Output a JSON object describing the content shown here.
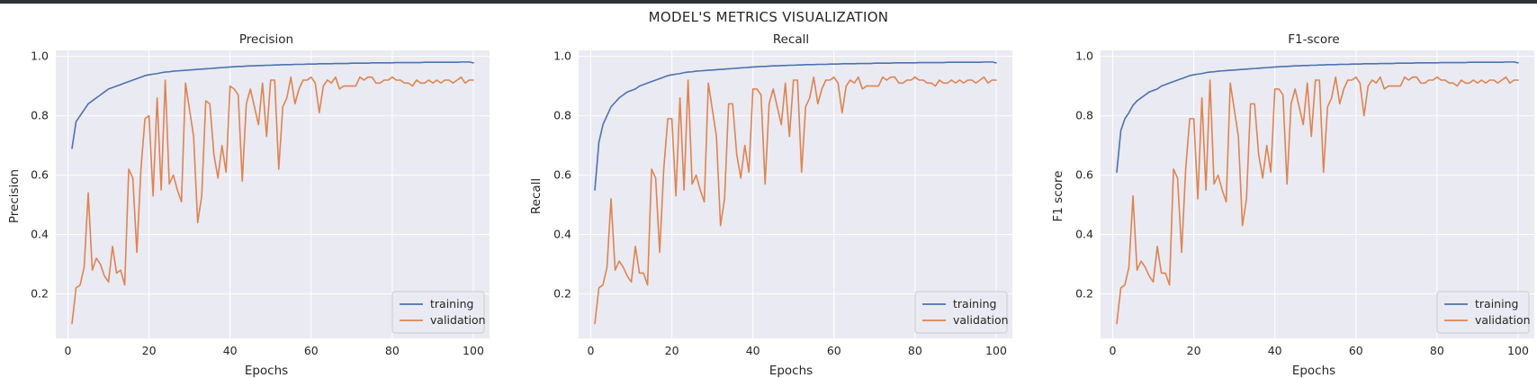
{
  "figure_title": "MODEL'S METRICS VISUALIZATION",
  "colors": {
    "background": "#eaeaf2",
    "grid": "#ffffff",
    "training": "#4c72b0",
    "validation": "#dd8452"
  },
  "chart_data": [
    {
      "type": "line",
      "title": "Precision",
      "xlabel": "Epochs",
      "ylabel": "Precision",
      "xlim": [
        -3,
        104
      ],
      "ylim": [
        0.05,
        1.02
      ],
      "xticks": [
        0,
        20,
        40,
        60,
        80,
        100
      ],
      "yticks": [
        0.2,
        0.4,
        0.6,
        0.8,
        1.0
      ],
      "grid": true,
      "legend_position": "lower-right",
      "x": [
        1,
        2,
        3,
        4,
        5,
        6,
        7,
        8,
        9,
        10,
        11,
        12,
        13,
        14,
        15,
        16,
        17,
        18,
        19,
        20,
        21,
        22,
        23,
        24,
        25,
        26,
        27,
        28,
        29,
        30,
        31,
        32,
        33,
        34,
        35,
        36,
        37,
        38,
        39,
        40,
        41,
        42,
        43,
        44,
        45,
        46,
        47,
        48,
        49,
        50,
        51,
        52,
        53,
        54,
        55,
        56,
        57,
        58,
        59,
        60,
        61,
        62,
        63,
        64,
        65,
        66,
        67,
        68,
        69,
        70,
        71,
        72,
        73,
        74,
        75,
        76,
        77,
        78,
        79,
        80,
        81,
        82,
        83,
        84,
        85,
        86,
        87,
        88,
        89,
        90,
        91,
        92,
        93,
        94,
        95,
        96,
        97,
        98,
        99,
        100
      ],
      "series": [
        {
          "name": "training",
          "values": [
            0.69,
            0.78,
            0.8,
            0.82,
            0.84,
            0.85,
            0.86,
            0.87,
            0.88,
            0.89,
            0.895,
            0.9,
            0.905,
            0.91,
            0.915,
            0.92,
            0.925,
            0.93,
            0.935,
            0.938,
            0.94,
            0.942,
            0.945,
            0.947,
            0.948,
            0.95,
            0.951,
            0.952,
            0.953,
            0.954,
            0.955,
            0.956,
            0.957,
            0.958,
            0.959,
            0.96,
            0.961,
            0.962,
            0.963,
            0.964,
            0.965,
            0.966,
            0.966,
            0.967,
            0.968,
            0.968,
            0.969,
            0.969,
            0.97,
            0.97,
            0.971,
            0.971,
            0.972,
            0.972,
            0.972,
            0.973,
            0.973,
            0.973,
            0.974,
            0.974,
            0.974,
            0.975,
            0.975,
            0.975,
            0.975,
            0.976,
            0.976,
            0.976,
            0.976,
            0.977,
            0.977,
            0.977,
            0.977,
            0.977,
            0.978,
            0.978,
            0.978,
            0.978,
            0.978,
            0.978,
            0.979,
            0.979,
            0.979,
            0.979,
            0.979,
            0.979,
            0.979,
            0.98,
            0.98,
            0.98,
            0.98,
            0.98,
            0.98,
            0.98,
            0.98,
            0.98,
            0.981,
            0.981,
            0.981,
            0.978
          ]
        },
        {
          "name": "validation",
          "values": [
            0.1,
            0.22,
            0.23,
            0.29,
            0.54,
            0.28,
            0.32,
            0.3,
            0.26,
            0.24,
            0.36,
            0.27,
            0.28,
            0.23,
            0.62,
            0.59,
            0.34,
            0.62,
            0.79,
            0.8,
            0.53,
            0.86,
            0.55,
            0.92,
            0.57,
            0.6,
            0.55,
            0.51,
            0.91,
            0.82,
            0.73,
            0.44,
            0.53,
            0.85,
            0.84,
            0.67,
            0.59,
            0.7,
            0.61,
            0.9,
            0.89,
            0.87,
            0.58,
            0.84,
            0.89,
            0.83,
            0.77,
            0.91,
            0.73,
            0.92,
            0.92,
            0.62,
            0.83,
            0.86,
            0.93,
            0.84,
            0.89,
            0.92,
            0.92,
            0.93,
            0.91,
            0.81,
            0.9,
            0.92,
            0.91,
            0.93,
            0.89,
            0.9,
            0.9,
            0.9,
            0.9,
            0.93,
            0.92,
            0.93,
            0.93,
            0.91,
            0.91,
            0.92,
            0.92,
            0.93,
            0.92,
            0.92,
            0.91,
            0.91,
            0.9,
            0.92,
            0.91,
            0.91,
            0.92,
            0.91,
            0.92,
            0.91,
            0.92,
            0.92,
            0.91,
            0.92,
            0.93,
            0.91,
            0.92,
            0.92
          ]
        }
      ]
    },
    {
      "type": "line",
      "title": "Recall",
      "xlabel": "Epochs",
      "ylabel": "Recall",
      "xlim": [
        -3,
        104
      ],
      "ylim": [
        0.05,
        1.02
      ],
      "xticks": [
        0,
        20,
        40,
        60,
        80,
        100
      ],
      "yticks": [
        0.2,
        0.4,
        0.6,
        0.8,
        1.0
      ],
      "grid": true,
      "legend_position": "lower-right",
      "x": [
        1,
        2,
        3,
        4,
        5,
        6,
        7,
        8,
        9,
        10,
        11,
        12,
        13,
        14,
        15,
        16,
        17,
        18,
        19,
        20,
        21,
        22,
        23,
        24,
        25,
        26,
        27,
        28,
        29,
        30,
        31,
        32,
        33,
        34,
        35,
        36,
        37,
        38,
        39,
        40,
        41,
        42,
        43,
        44,
        45,
        46,
        47,
        48,
        49,
        50,
        51,
        52,
        53,
        54,
        55,
        56,
        57,
        58,
        59,
        60,
        61,
        62,
        63,
        64,
        65,
        66,
        67,
        68,
        69,
        70,
        71,
        72,
        73,
        74,
        75,
        76,
        77,
        78,
        79,
        80,
        81,
        82,
        83,
        84,
        85,
        86,
        87,
        88,
        89,
        90,
        91,
        92,
        93,
        94,
        95,
        96,
        97,
        98,
        99,
        100
      ],
      "series": [
        {
          "name": "training",
          "values": [
            0.55,
            0.71,
            0.77,
            0.8,
            0.83,
            0.845,
            0.86,
            0.87,
            0.88,
            0.885,
            0.89,
            0.9,
            0.905,
            0.91,
            0.915,
            0.92,
            0.925,
            0.93,
            0.935,
            0.938,
            0.94,
            0.942,
            0.945,
            0.947,
            0.948,
            0.95,
            0.951,
            0.952,
            0.953,
            0.954,
            0.955,
            0.956,
            0.957,
            0.958,
            0.959,
            0.96,
            0.961,
            0.962,
            0.963,
            0.964,
            0.965,
            0.966,
            0.966,
            0.967,
            0.968,
            0.968,
            0.969,
            0.969,
            0.97,
            0.97,
            0.971,
            0.971,
            0.972,
            0.972,
            0.972,
            0.973,
            0.973,
            0.973,
            0.974,
            0.974,
            0.974,
            0.975,
            0.975,
            0.975,
            0.975,
            0.976,
            0.976,
            0.976,
            0.976,
            0.977,
            0.977,
            0.977,
            0.977,
            0.977,
            0.978,
            0.978,
            0.978,
            0.978,
            0.978,
            0.978,
            0.979,
            0.979,
            0.979,
            0.979,
            0.979,
            0.979,
            0.979,
            0.98,
            0.98,
            0.98,
            0.98,
            0.98,
            0.98,
            0.98,
            0.98,
            0.98,
            0.981,
            0.981,
            0.981,
            0.978
          ]
        },
        {
          "name": "validation",
          "values": [
            0.1,
            0.22,
            0.23,
            0.29,
            0.52,
            0.28,
            0.31,
            0.29,
            0.26,
            0.24,
            0.36,
            0.27,
            0.27,
            0.23,
            0.62,
            0.59,
            0.34,
            0.62,
            0.79,
            0.79,
            0.53,
            0.86,
            0.55,
            0.92,
            0.57,
            0.6,
            0.55,
            0.51,
            0.91,
            0.82,
            0.73,
            0.43,
            0.52,
            0.84,
            0.84,
            0.67,
            0.59,
            0.7,
            0.61,
            0.89,
            0.89,
            0.87,
            0.57,
            0.84,
            0.89,
            0.83,
            0.77,
            0.91,
            0.73,
            0.92,
            0.92,
            0.61,
            0.83,
            0.86,
            0.93,
            0.84,
            0.89,
            0.92,
            0.92,
            0.93,
            0.91,
            0.81,
            0.9,
            0.92,
            0.91,
            0.93,
            0.89,
            0.9,
            0.9,
            0.9,
            0.9,
            0.93,
            0.92,
            0.93,
            0.93,
            0.91,
            0.91,
            0.92,
            0.92,
            0.93,
            0.92,
            0.92,
            0.91,
            0.91,
            0.9,
            0.92,
            0.91,
            0.91,
            0.92,
            0.91,
            0.92,
            0.91,
            0.92,
            0.92,
            0.91,
            0.92,
            0.93,
            0.91,
            0.92,
            0.92
          ]
        }
      ]
    },
    {
      "type": "line",
      "title": "F1-score",
      "xlabel": "Epochs",
      "ylabel": "F1 score",
      "xlim": [
        -3,
        104
      ],
      "ylim": [
        0.05,
        1.02
      ],
      "xticks": [
        0,
        20,
        40,
        60,
        80,
        100
      ],
      "yticks": [
        0.2,
        0.4,
        0.6,
        0.8,
        1.0
      ],
      "grid": true,
      "legend_position": "lower-right",
      "x": [
        1,
        2,
        3,
        4,
        5,
        6,
        7,
        8,
        9,
        10,
        11,
        12,
        13,
        14,
        15,
        16,
        17,
        18,
        19,
        20,
        21,
        22,
        23,
        24,
        25,
        26,
        27,
        28,
        29,
        30,
        31,
        32,
        33,
        34,
        35,
        36,
        37,
        38,
        39,
        40,
        41,
        42,
        43,
        44,
        45,
        46,
        47,
        48,
        49,
        50,
        51,
        52,
        53,
        54,
        55,
        56,
        57,
        58,
        59,
        60,
        61,
        62,
        63,
        64,
        65,
        66,
        67,
        68,
        69,
        70,
        71,
        72,
        73,
        74,
        75,
        76,
        77,
        78,
        79,
        80,
        81,
        82,
        83,
        84,
        85,
        86,
        87,
        88,
        89,
        90,
        91,
        92,
        93,
        94,
        95,
        96,
        97,
        98,
        99,
        100
      ],
      "series": [
        {
          "name": "training",
          "values": [
            0.61,
            0.75,
            0.79,
            0.81,
            0.835,
            0.85,
            0.86,
            0.87,
            0.88,
            0.885,
            0.89,
            0.9,
            0.905,
            0.91,
            0.915,
            0.92,
            0.925,
            0.93,
            0.935,
            0.938,
            0.94,
            0.942,
            0.945,
            0.947,
            0.948,
            0.95,
            0.951,
            0.952,
            0.953,
            0.954,
            0.955,
            0.956,
            0.957,
            0.958,
            0.959,
            0.96,
            0.961,
            0.962,
            0.963,
            0.964,
            0.965,
            0.966,
            0.966,
            0.967,
            0.968,
            0.968,
            0.969,
            0.969,
            0.97,
            0.97,
            0.971,
            0.971,
            0.972,
            0.972,
            0.972,
            0.973,
            0.973,
            0.973,
            0.974,
            0.974,
            0.974,
            0.975,
            0.975,
            0.975,
            0.975,
            0.976,
            0.976,
            0.976,
            0.976,
            0.977,
            0.977,
            0.977,
            0.977,
            0.977,
            0.978,
            0.978,
            0.978,
            0.978,
            0.978,
            0.978,
            0.979,
            0.979,
            0.979,
            0.979,
            0.979,
            0.979,
            0.979,
            0.98,
            0.98,
            0.98,
            0.98,
            0.98,
            0.98,
            0.98,
            0.98,
            0.98,
            0.981,
            0.981,
            0.981,
            0.978
          ]
        },
        {
          "name": "validation",
          "values": [
            0.1,
            0.22,
            0.23,
            0.29,
            0.53,
            0.28,
            0.31,
            0.29,
            0.26,
            0.24,
            0.36,
            0.27,
            0.27,
            0.23,
            0.62,
            0.59,
            0.34,
            0.62,
            0.79,
            0.79,
            0.52,
            0.86,
            0.55,
            0.92,
            0.57,
            0.6,
            0.55,
            0.51,
            0.91,
            0.82,
            0.73,
            0.43,
            0.52,
            0.84,
            0.84,
            0.67,
            0.59,
            0.7,
            0.61,
            0.89,
            0.89,
            0.87,
            0.57,
            0.84,
            0.89,
            0.83,
            0.77,
            0.91,
            0.73,
            0.92,
            0.92,
            0.61,
            0.83,
            0.86,
            0.93,
            0.84,
            0.89,
            0.92,
            0.92,
            0.93,
            0.91,
            0.8,
            0.9,
            0.92,
            0.91,
            0.93,
            0.89,
            0.9,
            0.9,
            0.9,
            0.9,
            0.93,
            0.92,
            0.93,
            0.93,
            0.91,
            0.91,
            0.92,
            0.92,
            0.93,
            0.92,
            0.92,
            0.91,
            0.91,
            0.9,
            0.92,
            0.91,
            0.91,
            0.92,
            0.91,
            0.92,
            0.91,
            0.92,
            0.92,
            0.91,
            0.92,
            0.93,
            0.91,
            0.92,
            0.92
          ]
        }
      ]
    }
  ]
}
